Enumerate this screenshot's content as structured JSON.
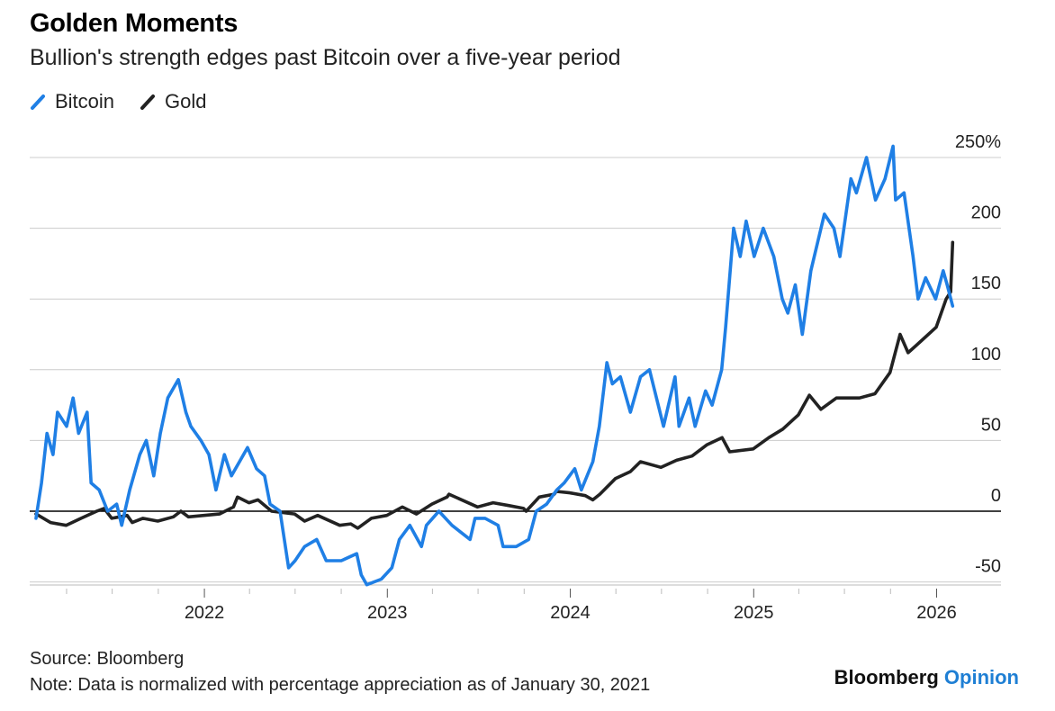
{
  "header": {
    "title": "Golden Moments",
    "subtitle": "Bullion's strength edges past Bitcoin over a five-year period"
  },
  "footer": {
    "source": "Source: Bloomberg",
    "note": "Note: Data is normalized with percentage appreciation as of January 30, 2021"
  },
  "brand": {
    "name": "Bloomberg",
    "suffix": "Opinion"
  },
  "chart_data": {
    "type": "line",
    "title": "Golden Moments",
    "subtitle": "Bullion's strength edges past Bitcoin over a five-year period",
    "xlabel": "",
    "ylabel": "",
    "x_range": [
      "2021-01-30",
      "2026-02-05"
    ],
    "ylim": [
      -55,
      260
    ],
    "y_ticks": [
      250,
      200,
      150,
      100,
      50,
      0,
      -50
    ],
    "y_tick_labels": [
      "250%",
      "200",
      "150",
      "100",
      "50",
      "0",
      "-50"
    ],
    "x_ticks": [
      "2022",
      "2023",
      "2024",
      "2025",
      "2026"
    ],
    "grid": true,
    "legend_position": "top-left",
    "colors": {
      "Bitcoin": "#1f7fe5",
      "Gold": "#222222"
    },
    "series": [
      {
        "name": "Bitcoin",
        "color": "#1f7fe5",
        "points": [
          [
            "2021-01-30",
            -5
          ],
          [
            "2021-02-10",
            20
          ],
          [
            "2021-02-21",
            55
          ],
          [
            "2021-03-05",
            40
          ],
          [
            "2021-03-14",
            70
          ],
          [
            "2021-04-01",
            60
          ],
          [
            "2021-04-14",
            80
          ],
          [
            "2021-04-25",
            55
          ],
          [
            "2021-05-12",
            70
          ],
          [
            "2021-05-20",
            20
          ],
          [
            "2021-06-05",
            15
          ],
          [
            "2021-06-22",
            0
          ],
          [
            "2021-07-10",
            5
          ],
          [
            "2021-07-20",
            -10
          ],
          [
            "2021-08-05",
            15
          ],
          [
            "2021-08-25",
            40
          ],
          [
            "2021-09-07",
            50
          ],
          [
            "2021-09-22",
            25
          ],
          [
            "2021-10-05",
            55
          ],
          [
            "2021-10-20",
            80
          ],
          [
            "2021-11-10",
            93
          ],
          [
            "2021-11-25",
            70
          ],
          [
            "2021-12-05",
            60
          ],
          [
            "2021-12-25",
            50
          ],
          [
            "2022-01-10",
            40
          ],
          [
            "2022-01-24",
            15
          ],
          [
            "2022-02-10",
            40
          ],
          [
            "2022-02-24",
            25
          ],
          [
            "2022-03-28",
            45
          ],
          [
            "2022-04-15",
            30
          ],
          [
            "2022-05-01",
            25
          ],
          [
            "2022-05-12",
            5
          ],
          [
            "2022-06-01",
            0
          ],
          [
            "2022-06-18",
            -40
          ],
          [
            "2022-07-01",
            -35
          ],
          [
            "2022-07-20",
            -25
          ],
          [
            "2022-08-13",
            -20
          ],
          [
            "2022-09-01",
            -35
          ],
          [
            "2022-10-01",
            -35
          ],
          [
            "2022-11-01",
            -30
          ],
          [
            "2022-11-10",
            -45
          ],
          [
            "2022-11-21",
            -52
          ],
          [
            "2022-12-20",
            -48
          ],
          [
            "2023-01-10",
            -40
          ],
          [
            "2023-01-25",
            -20
          ],
          [
            "2023-02-15",
            -10
          ],
          [
            "2023-03-10",
            -25
          ],
          [
            "2023-03-20",
            -10
          ],
          [
            "2023-04-14",
            0
          ],
          [
            "2023-05-10",
            -10
          ],
          [
            "2023-06-15",
            -20
          ],
          [
            "2023-06-25",
            -5
          ],
          [
            "2023-07-15",
            -5
          ],
          [
            "2023-08-10",
            -10
          ],
          [
            "2023-08-20",
            -25
          ],
          [
            "2023-09-15",
            -25
          ],
          [
            "2023-10-10",
            -20
          ],
          [
            "2023-10-25",
            0
          ],
          [
            "2023-11-15",
            5
          ],
          [
            "2023-12-05",
            15
          ],
          [
            "2023-12-20",
            20
          ],
          [
            "2024-01-10",
            30
          ],
          [
            "2024-01-23",
            15
          ],
          [
            "2024-02-15",
            35
          ],
          [
            "2024-02-28",
            60
          ],
          [
            "2024-03-14",
            105
          ],
          [
            "2024-03-25",
            90
          ],
          [
            "2024-04-10",
            95
          ],
          [
            "2024-04-30",
            70
          ],
          [
            "2024-05-20",
            95
          ],
          [
            "2024-06-07",
            100
          ],
          [
            "2024-07-05",
            60
          ],
          [
            "2024-07-28",
            95
          ],
          [
            "2024-08-05",
            60
          ],
          [
            "2024-08-25",
            80
          ],
          [
            "2024-09-06",
            60
          ],
          [
            "2024-09-27",
            85
          ],
          [
            "2024-10-10",
            75
          ],
          [
            "2024-10-29",
            100
          ],
          [
            "2024-11-06",
            130
          ],
          [
            "2024-11-22",
            200
          ],
          [
            "2024-12-05",
            180
          ],
          [
            "2024-12-17",
            205
          ],
          [
            "2025-01-02",
            180
          ],
          [
            "2025-01-20",
            200
          ],
          [
            "2025-02-10",
            180
          ],
          [
            "2025-02-27",
            150
          ],
          [
            "2025-03-10",
            140
          ],
          [
            "2025-03-25",
            160
          ],
          [
            "2025-04-08",
            125
          ],
          [
            "2025-04-25",
            170
          ],
          [
            "2025-05-22",
            210
          ],
          [
            "2025-06-10",
            200
          ],
          [
            "2025-06-22",
            180
          ],
          [
            "2025-07-14",
            235
          ],
          [
            "2025-07-25",
            225
          ],
          [
            "2025-08-14",
            250
          ],
          [
            "2025-09-01",
            220
          ],
          [
            "2025-09-20",
            235
          ],
          [
            "2025-10-06",
            258
          ],
          [
            "2025-10-11",
            220
          ],
          [
            "2025-10-28",
            225
          ],
          [
            "2025-11-15",
            180
          ],
          [
            "2025-11-25",
            150
          ],
          [
            "2025-12-10",
            165
          ],
          [
            "2025-12-30",
            150
          ],
          [
            "2026-01-14",
            170
          ],
          [
            "2026-01-22",
            160
          ],
          [
            "2026-02-02",
            145
          ]
        ]
      },
      {
        "name": "Gold",
        "color": "#222222",
        "points": [
          [
            "2021-01-30",
            -2
          ],
          [
            "2021-02-28",
            -8
          ],
          [
            "2021-03-31",
            -10
          ],
          [
            "2021-04-30",
            -5
          ],
          [
            "2021-05-31",
            0
          ],
          [
            "2021-06-15",
            2
          ],
          [
            "2021-06-30",
            -5
          ],
          [
            "2021-07-31",
            -3
          ],
          [
            "2021-08-10",
            -8
          ],
          [
            "2021-08-31",
            -5
          ],
          [
            "2021-09-30",
            -7
          ],
          [
            "2021-10-31",
            -4
          ],
          [
            "2021-11-15",
            0
          ],
          [
            "2021-11-30",
            -4
          ],
          [
            "2021-12-31",
            -3
          ],
          [
            "2022-01-31",
            -2
          ],
          [
            "2022-02-28",
            3
          ],
          [
            "2022-03-08",
            10
          ],
          [
            "2022-03-31",
            6
          ],
          [
            "2022-04-18",
            8
          ],
          [
            "2022-05-15",
            0
          ],
          [
            "2022-06-30",
            -2
          ],
          [
            "2022-07-20",
            -7
          ],
          [
            "2022-08-15",
            -3
          ],
          [
            "2022-09-28",
            -10
          ],
          [
            "2022-10-20",
            -9
          ],
          [
            "2022-11-03",
            -12
          ],
          [
            "2022-11-30",
            -5
          ],
          [
            "2022-12-31",
            -3
          ],
          [
            "2023-01-31",
            3
          ],
          [
            "2023-02-28",
            -2
          ],
          [
            "2023-03-31",
            5
          ],
          [
            "2023-04-30",
            10
          ],
          [
            "2023-05-04",
            12
          ],
          [
            "2023-06-30",
            3
          ],
          [
            "2023-07-31",
            6
          ],
          [
            "2023-08-31",
            4
          ],
          [
            "2023-09-30",
            2
          ],
          [
            "2023-10-05",
            0
          ],
          [
            "2023-10-31",
            10
          ],
          [
            "2023-11-30",
            12
          ],
          [
            "2023-12-04",
            14
          ],
          [
            "2023-12-31",
            13
          ],
          [
            "2024-01-31",
            11
          ],
          [
            "2024-02-15",
            8
          ],
          [
            "2024-02-29",
            12
          ],
          [
            "2024-03-31",
            23
          ],
          [
            "2024-04-30",
            28
          ],
          [
            "2024-05-20",
            35
          ],
          [
            "2024-06-30",
            31
          ],
          [
            "2024-07-31",
            36
          ],
          [
            "2024-08-31",
            39
          ],
          [
            "2024-09-30",
            47
          ],
          [
            "2024-10-30",
            52
          ],
          [
            "2024-11-14",
            42
          ],
          [
            "2024-12-31",
            44
          ],
          [
            "2025-01-31",
            52
          ],
          [
            "2025-02-28",
            58
          ],
          [
            "2025-03-31",
            68
          ],
          [
            "2025-04-22",
            82
          ],
          [
            "2025-05-15",
            72
          ],
          [
            "2025-06-15",
            80
          ],
          [
            "2025-07-31",
            80
          ],
          [
            "2025-08-31",
            83
          ],
          [
            "2025-09-30",
            98
          ],
          [
            "2025-10-20",
            125
          ],
          [
            "2025-11-05",
            112
          ],
          [
            "2025-11-30",
            120
          ],
          [
            "2025-12-31",
            130
          ],
          [
            "2026-01-20",
            150
          ],
          [
            "2026-01-29",
            155
          ],
          [
            "2026-02-02",
            190
          ]
        ]
      }
    ]
  }
}
